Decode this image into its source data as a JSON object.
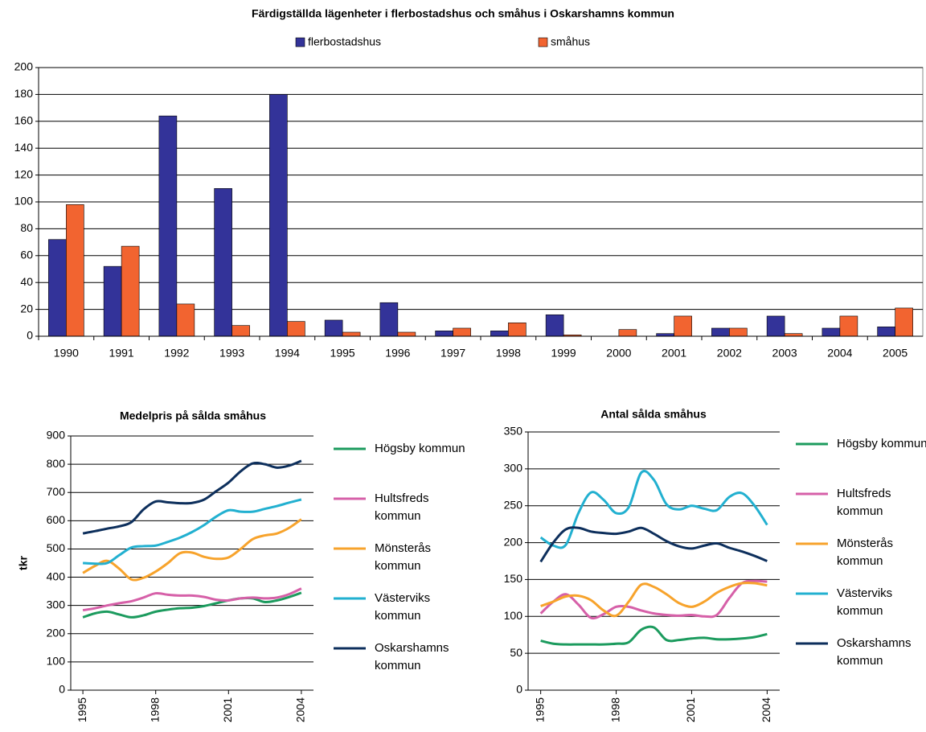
{
  "chart_data": [
    {
      "type": "bar",
      "title": "Färdigställda lägenheter i flerbostadshus och småhus i Oskarshamns kommun",
      "categories": [
        "1990",
        "1991",
        "1992",
        "1993",
        "1994",
        "1995",
        "1996",
        "1997",
        "1998",
        "1999",
        "2000",
        "2001",
        "2002",
        "2003",
        "2004",
        "2005"
      ],
      "series": [
        {
          "name": "flerbostadshus",
          "color": "#333399",
          "values": [
            72,
            52,
            164,
            110,
            180,
            12,
            25,
            4,
            4,
            16,
            0,
            2,
            6,
            15,
            6,
            7
          ]
        },
        {
          "name": "småhus",
          "color": "#f26430",
          "values": [
            98,
            67,
            24,
            8,
            11,
            3,
            3,
            6,
            10,
            1,
            5,
            15,
            6,
            2,
            15,
            21
          ]
        }
      ],
      "ylim": [
        0,
        200
      ],
      "yticks": [
        0,
        20,
        40,
        60,
        80,
        100,
        120,
        140,
        160,
        180,
        200
      ],
      "grid": true,
      "legend": "top"
    },
    {
      "type": "line",
      "title": "Medelpris på sålda småhus",
      "y_label": "tkr",
      "x": [
        1995,
        1995.5,
        1996,
        1996.5,
        1997,
        1997.5,
        1998,
        1998.5,
        1999,
        1999.5,
        2000,
        2000.5,
        2001,
        2001.5,
        2002,
        2002.5,
        2003,
        2003.5,
        2004
      ],
      "xlim": [
        1994.5,
        2004.5
      ],
      "xticks": [
        1995,
        1998,
        2001,
        2004
      ],
      "ylim": [
        0,
        900
      ],
      "yticks": [
        0,
        100,
        200,
        300,
        400,
        500,
        600,
        700,
        800,
        900
      ],
      "grid": true,
      "legend": "right",
      "series": [
        {
          "name": "Högsby kommun",
          "color": "#1c9b5e",
          "values": [
            258,
            272,
            278,
            268,
            258,
            265,
            278,
            285,
            290,
            292,
            298,
            308,
            318,
            325,
            325,
            312,
            318,
            330,
            345
          ]
        },
        {
          "name": "Hultsfreds kommun",
          "color": "#d660a8",
          "values": [
            283,
            290,
            300,
            308,
            315,
            328,
            343,
            338,
            335,
            335,
            330,
            320,
            318,
            325,
            328,
            325,
            328,
            340,
            360
          ]
        },
        {
          "name": "Mönsterås kommun",
          "color": "#f7a32c",
          "values": [
            415,
            440,
            458,
            430,
            392,
            398,
            420,
            450,
            485,
            487,
            472,
            465,
            470,
            500,
            535,
            548,
            555,
            575,
            605
          ]
        },
        {
          "name": "Västerviks kommun",
          "color": "#22b0d0",
          "values": [
            450,
            448,
            450,
            478,
            505,
            510,
            512,
            525,
            540,
            560,
            585,
            615,
            637,
            632,
            632,
            642,
            652,
            664,
            675
          ]
        },
        {
          "name": "Oskarshamns kommun",
          "color": "#0d2f5c",
          "values": [
            555,
            563,
            572,
            580,
            595,
            640,
            668,
            665,
            662,
            663,
            675,
            705,
            735,
            775,
            803,
            800,
            788,
            795,
            812
          ]
        }
      ]
    },
    {
      "type": "line",
      "title": "Antal sålda småhus",
      "x": [
        1995,
        1995.5,
        1996,
        1996.5,
        1997,
        1997.5,
        1998,
        1998.5,
        1999,
        1999.5,
        2000,
        2000.5,
        2001,
        2001.5,
        2002,
        2002.5,
        2003,
        2003.5,
        2004
      ],
      "xlim": [
        1994.5,
        2004.5
      ],
      "xticks": [
        1995,
        1998,
        2001,
        2004
      ],
      "ylim": [
        0,
        350
      ],
      "yticks": [
        0,
        50,
        100,
        150,
        200,
        250,
        300,
        350
      ],
      "grid": true,
      "legend": "right",
      "series": [
        {
          "name": "Högsby kommun",
          "color": "#1c9b5e",
          "values": [
            67,
            63,
            62,
            62,
            62,
            62,
            63,
            65,
            82,
            85,
            68,
            68,
            70,
            71,
            69,
            69,
            70,
            72,
            76
          ]
        },
        {
          "name": "Hultsfreds kommun",
          "color": "#d660a8",
          "values": [
            104,
            120,
            130,
            116,
            98,
            103,
            113,
            113,
            108,
            104,
            102,
            101,
            102,
            100,
            102,
            125,
            145,
            148,
            147
          ]
        },
        {
          "name": "Mönsterås kommun",
          "color": "#f7a32c",
          "values": [
            114,
            120,
            127,
            128,
            122,
            108,
            101,
            120,
            143,
            140,
            130,
            118,
            113,
            120,
            132,
            140,
            145,
            145,
            142
          ]
        },
        {
          "name": "Västerviks kommun",
          "color": "#22b0d0",
          "values": [
            207,
            196,
            197,
            240,
            268,
            258,
            240,
            248,
            295,
            285,
            252,
            245,
            250,
            246,
            244,
            262,
            267,
            250,
            224
          ]
        },
        {
          "name": "Oskarshamns kommun",
          "color": "#0d2f5c",
          "values": [
            174,
            200,
            218,
            220,
            215,
            213,
            212,
            215,
            220,
            212,
            202,
            195,
            192,
            196,
            199,
            193,
            188,
            182,
            175
          ]
        }
      ]
    }
  ]
}
